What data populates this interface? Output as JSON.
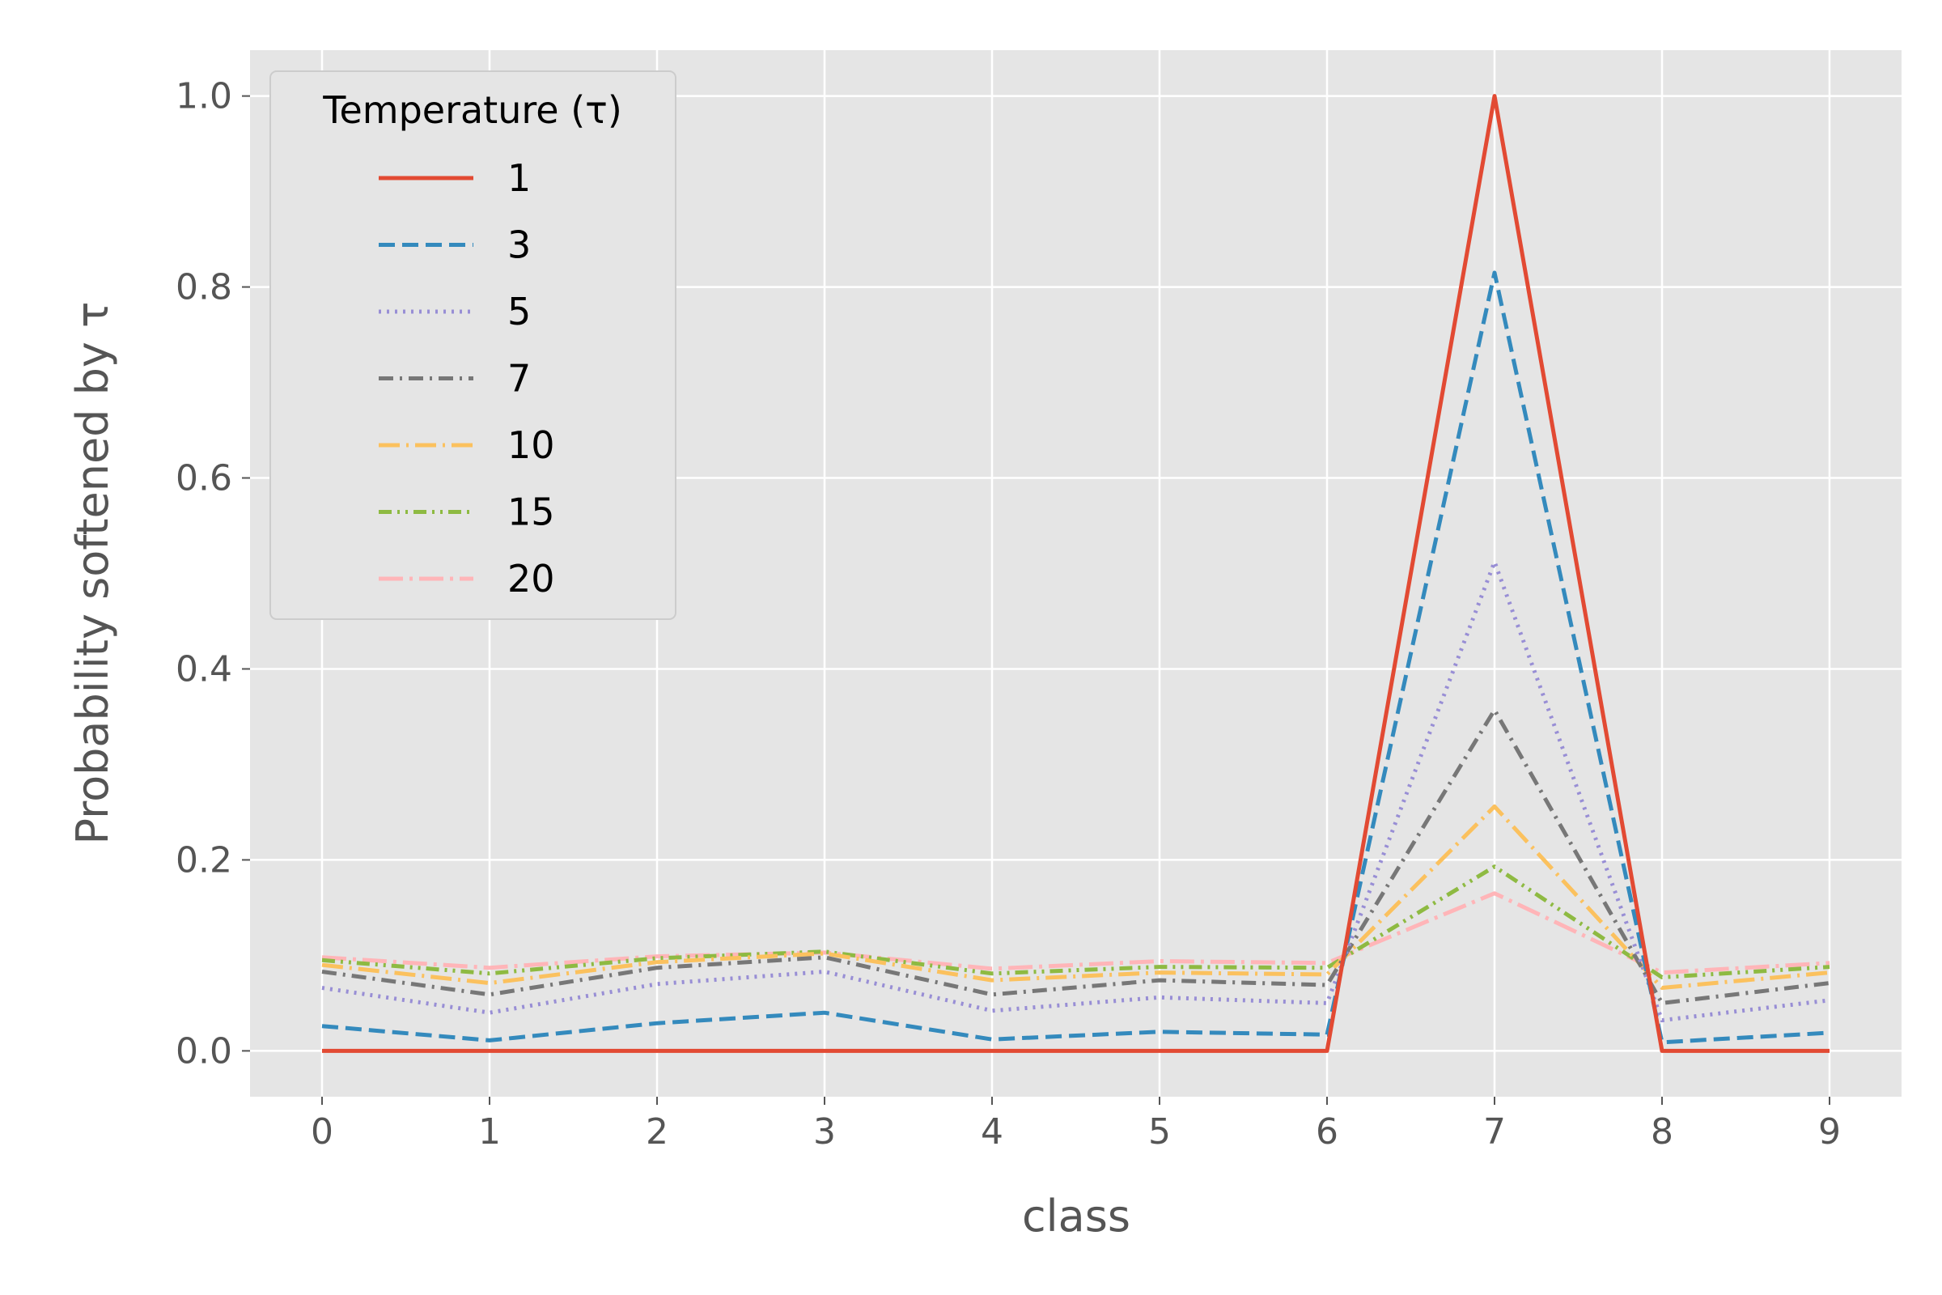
{
  "chart_data": {
    "type": "line",
    "xlabel": "class",
    "ylabel": "Probability softened by τ",
    "x": [
      0,
      1,
      2,
      3,
      4,
      5,
      6,
      7,
      8,
      9
    ],
    "xlim": [
      -0.43,
      9.43
    ],
    "ylim": [
      -0.048,
      1.048
    ],
    "xticks": [
      "0",
      "1",
      "2",
      "3",
      "4",
      "5",
      "6",
      "7",
      "8",
      "9"
    ],
    "yticks": [
      "0.0",
      "0.2",
      "0.4",
      "0.6",
      "0.8",
      "1.0"
    ],
    "grid": true,
    "legend": {
      "title": "Temperature (τ)",
      "placement": "top-left"
    },
    "series": [
      {
        "name": "1",
        "color": "#E24A33",
        "dash": "solid",
        "values": [
          0.0,
          0.0,
          0.0,
          0.0,
          0.0,
          0.0,
          0.0,
          1.0,
          0.0,
          0.0
        ]
      },
      {
        "name": "3",
        "color": "#348ABD",
        "dash": "dashed",
        "values": [
          0.026,
          0.011,
          0.029,
          0.04,
          0.012,
          0.02,
          0.017,
          0.815,
          0.009,
          0.019
        ]
      },
      {
        "name": "5",
        "color": "#988ED5",
        "dash": "dotted",
        "values": [
          0.066,
          0.04,
          0.07,
          0.083,
          0.042,
          0.056,
          0.05,
          0.512,
          0.032,
          0.053
        ]
      },
      {
        "name": "7",
        "color": "#777777",
        "dash": "dashdot",
        "values": [
          0.083,
          0.059,
          0.087,
          0.098,
          0.059,
          0.074,
          0.069,
          0.357,
          0.05,
          0.071
        ]
      },
      {
        "name": "10",
        "color": "#FBC15E",
        "dash": "dashdot2",
        "values": [
          0.09,
          0.071,
          0.093,
          0.102,
          0.074,
          0.082,
          0.08,
          0.256,
          0.066,
          0.082
        ]
      },
      {
        "name": "15",
        "color": "#8EBA42",
        "dash": "dashdotdot",
        "values": [
          0.095,
          0.081,
          0.097,
          0.104,
          0.081,
          0.088,
          0.087,
          0.193,
          0.077,
          0.088
        ]
      },
      {
        "name": "20",
        "color": "#FFB5B8",
        "dash": "longdashdot",
        "values": [
          0.098,
          0.087,
          0.099,
          0.103,
          0.086,
          0.094,
          0.092,
          0.165,
          0.082,
          0.092
        ]
      }
    ]
  }
}
